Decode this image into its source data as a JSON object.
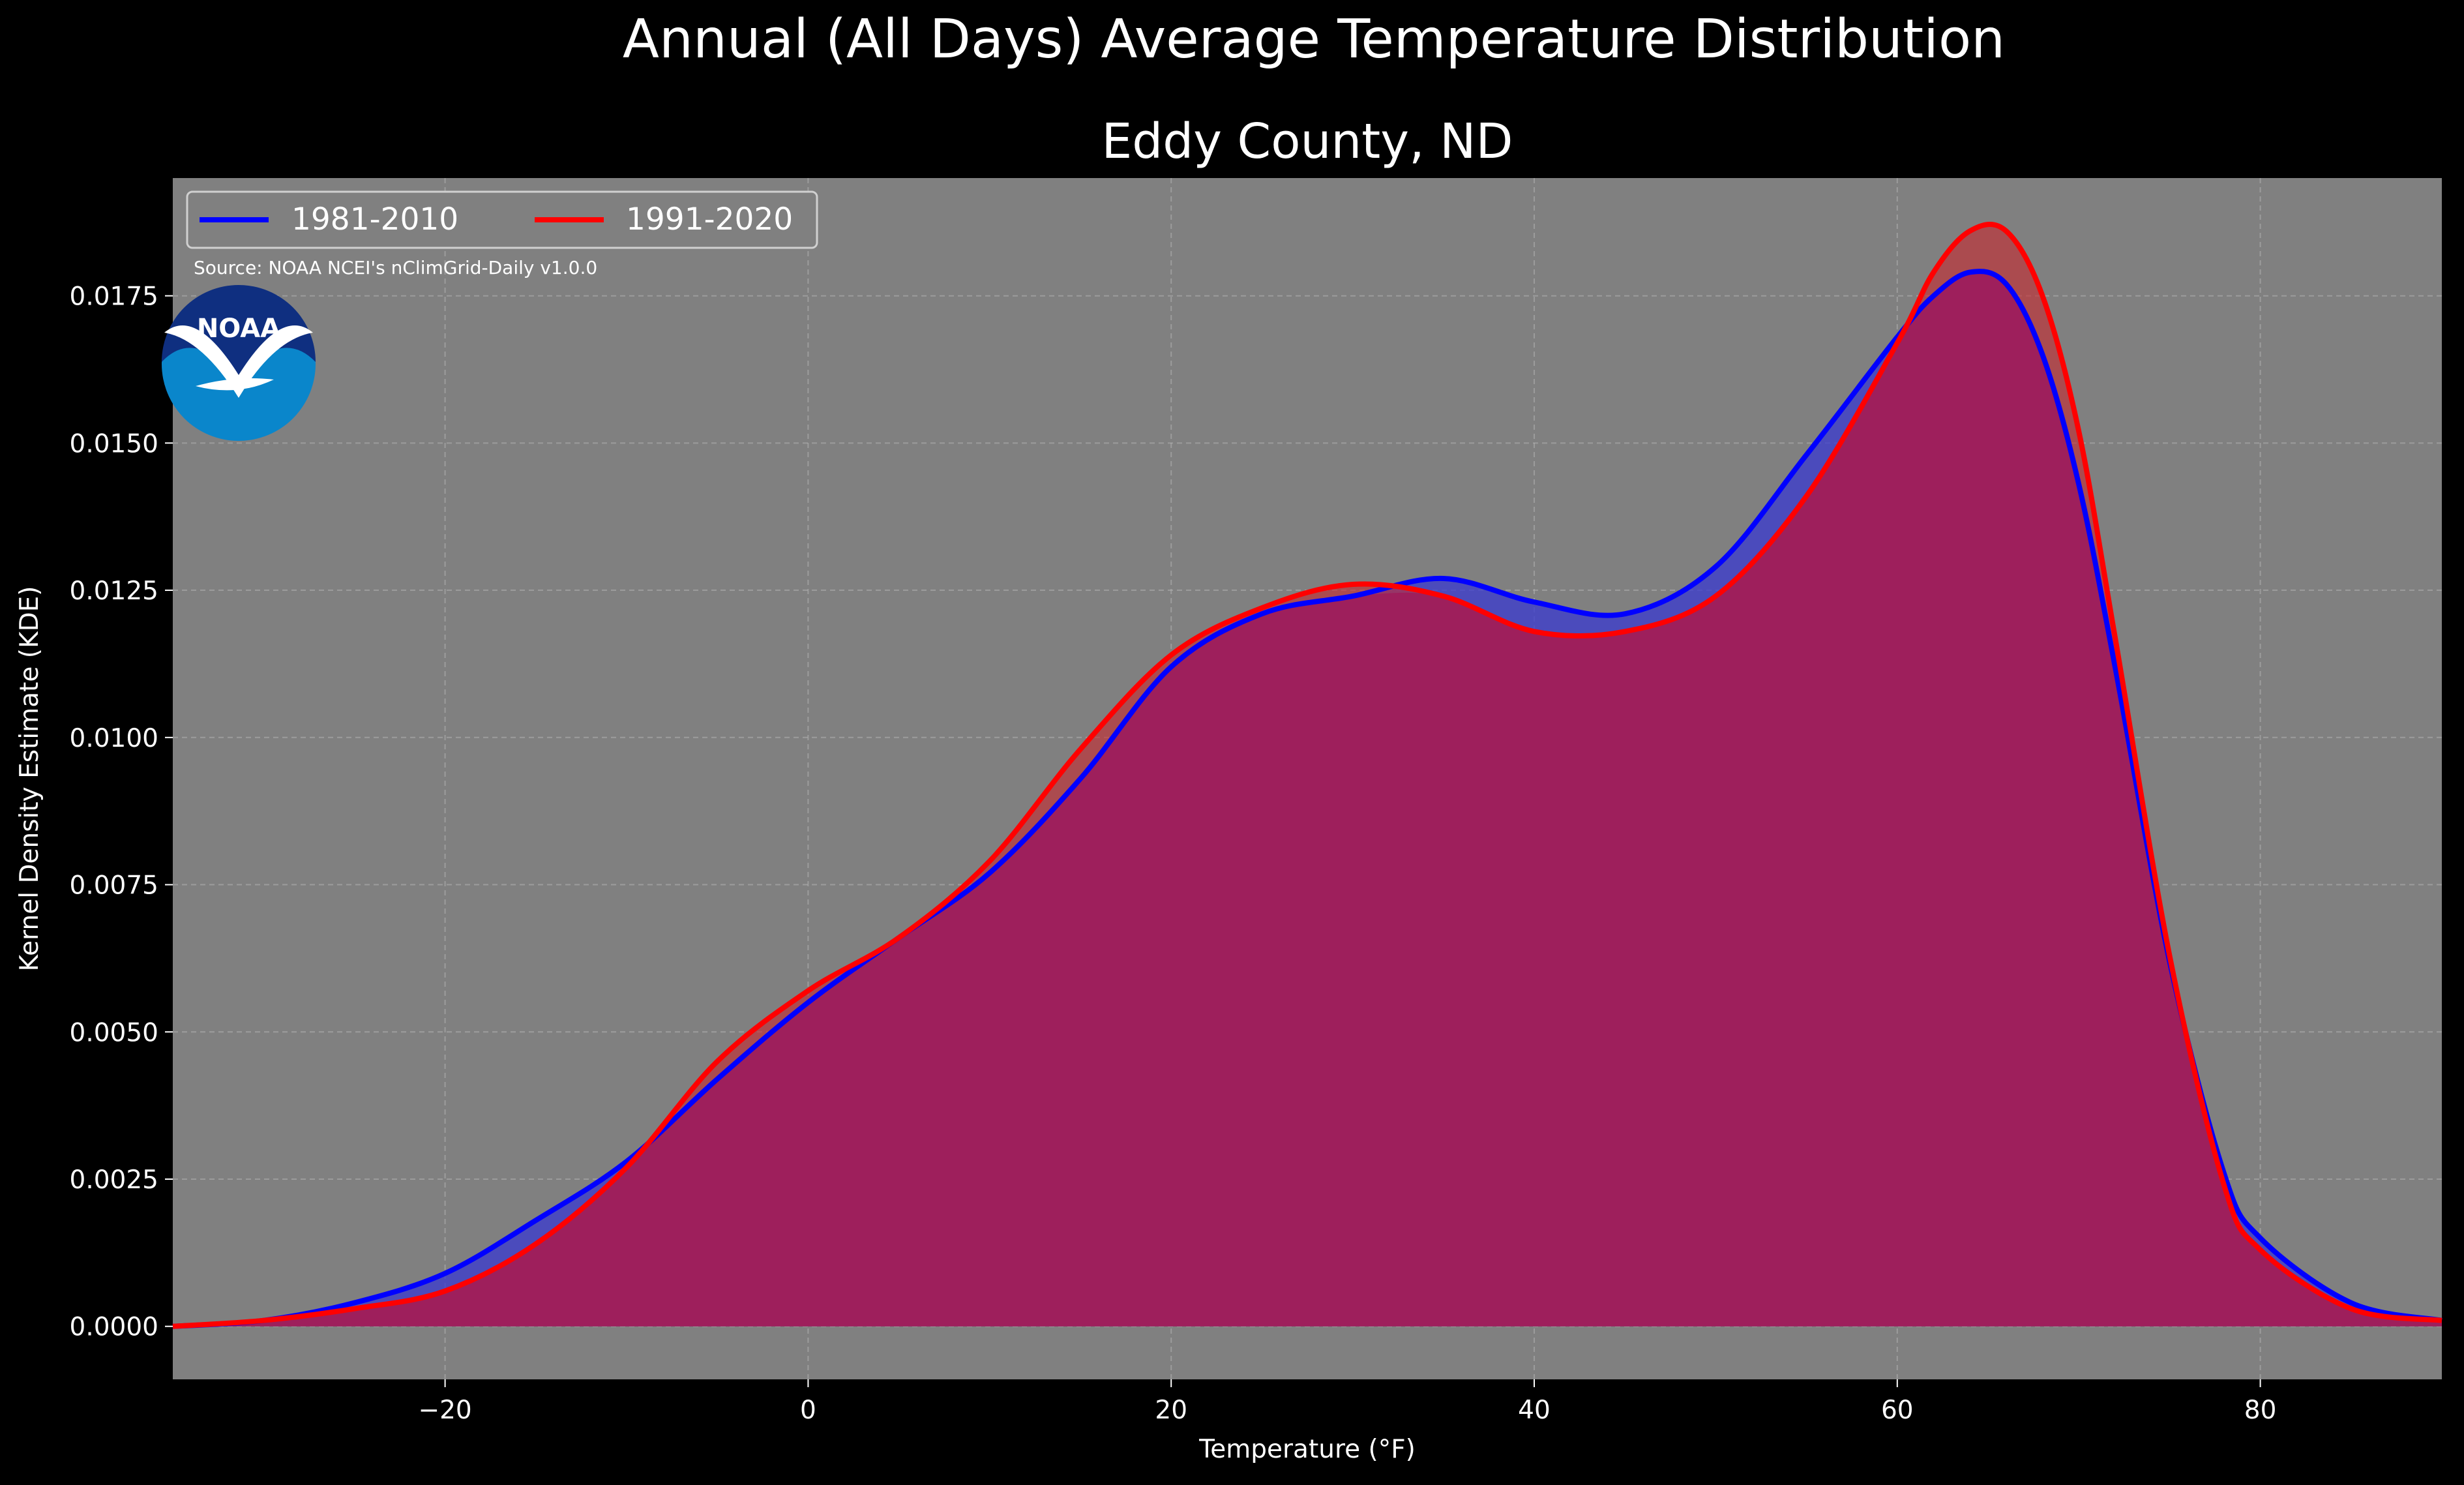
{
  "chart_data": {
    "type": "area",
    "title": "Annual (All Days) Average Temperature Distribution",
    "subtitle": "Eddy County, ND",
    "xlabel": "Temperature (°F)",
    "ylabel": "Kernel Density Estimate (KDE)",
    "xlim": [
      -35,
      90
    ],
    "ylim": [
      -0.0009,
      0.0195
    ],
    "x_ticks": [
      -20,
      0,
      20,
      40,
      60,
      80
    ],
    "x_tick_labels": [
      "−20",
      "0",
      "20",
      "40",
      "60",
      "80"
    ],
    "y_ticks": [
      0,
      0.0025,
      0.005,
      0.0075,
      0.01,
      0.0125,
      0.015,
      0.0175
    ],
    "y_tick_labels": [
      "0.0000",
      "0.0025",
      "0.0050",
      "0.0075",
      "0.0100",
      "0.0125",
      "0.0150",
      "0.0175"
    ],
    "grid": true,
    "legend_position": "top-left",
    "source_note": "Source: NOAA NCEI's nClimGrid-Daily v1.0.0",
    "logo_text": "NOAA",
    "colors": {
      "background": "#000000",
      "plot_background": "#808080",
      "text": "#ffffff",
      "grid": "#b0b0b0",
      "overlap_fill": "#9e1f5c"
    },
    "series": [
      {
        "name": "1981-2010",
        "color": "#0000ff",
        "fill": "#3a3ad0",
        "x": [
          -35,
          -30,
          -25,
          -20,
          -15,
          -10,
          -5,
          0,
          5,
          10,
          15,
          20,
          25,
          30,
          35,
          40,
          45,
          50,
          55,
          60,
          62,
          64,
          66,
          68,
          70,
          72,
          75,
          78,
          80,
          85,
          90
        ],
        "y": [
          0.0,
          0.0001,
          0.0004,
          0.0009,
          0.0018,
          0.0028,
          0.0042,
          0.0055,
          0.0066,
          0.0077,
          0.0093,
          0.0112,
          0.0121,
          0.0124,
          0.0127,
          0.0123,
          0.0121,
          0.0129,
          0.0148,
          0.0168,
          0.0175,
          0.0179,
          0.0177,
          0.0165,
          0.0143,
          0.0112,
          0.0062,
          0.0026,
          0.0015,
          0.0004,
          0.0001
        ]
      },
      {
        "name": "1991-2020",
        "color": "#ff0000",
        "fill": "#c8282f",
        "x": [
          -35,
          -30,
          -25,
          -20,
          -15,
          -10,
          -5,
          0,
          5,
          10,
          15,
          20,
          25,
          30,
          35,
          40,
          45,
          50,
          55,
          60,
          62,
          64,
          66,
          68,
          70,
          72,
          75,
          78,
          80,
          85,
          90
        ],
        "y": [
          0.0,
          0.0001,
          0.0003,
          0.0006,
          0.0014,
          0.0027,
          0.0045,
          0.0057,
          0.0066,
          0.0079,
          0.0098,
          0.0114,
          0.0122,
          0.0126,
          0.0124,
          0.0118,
          0.0118,
          0.0124,
          0.0141,
          0.0167,
          0.0179,
          0.0186,
          0.0186,
          0.0175,
          0.0152,
          0.0117,
          0.0063,
          0.0024,
          0.0013,
          0.0003,
          0.0001
        ]
      }
    ]
  }
}
